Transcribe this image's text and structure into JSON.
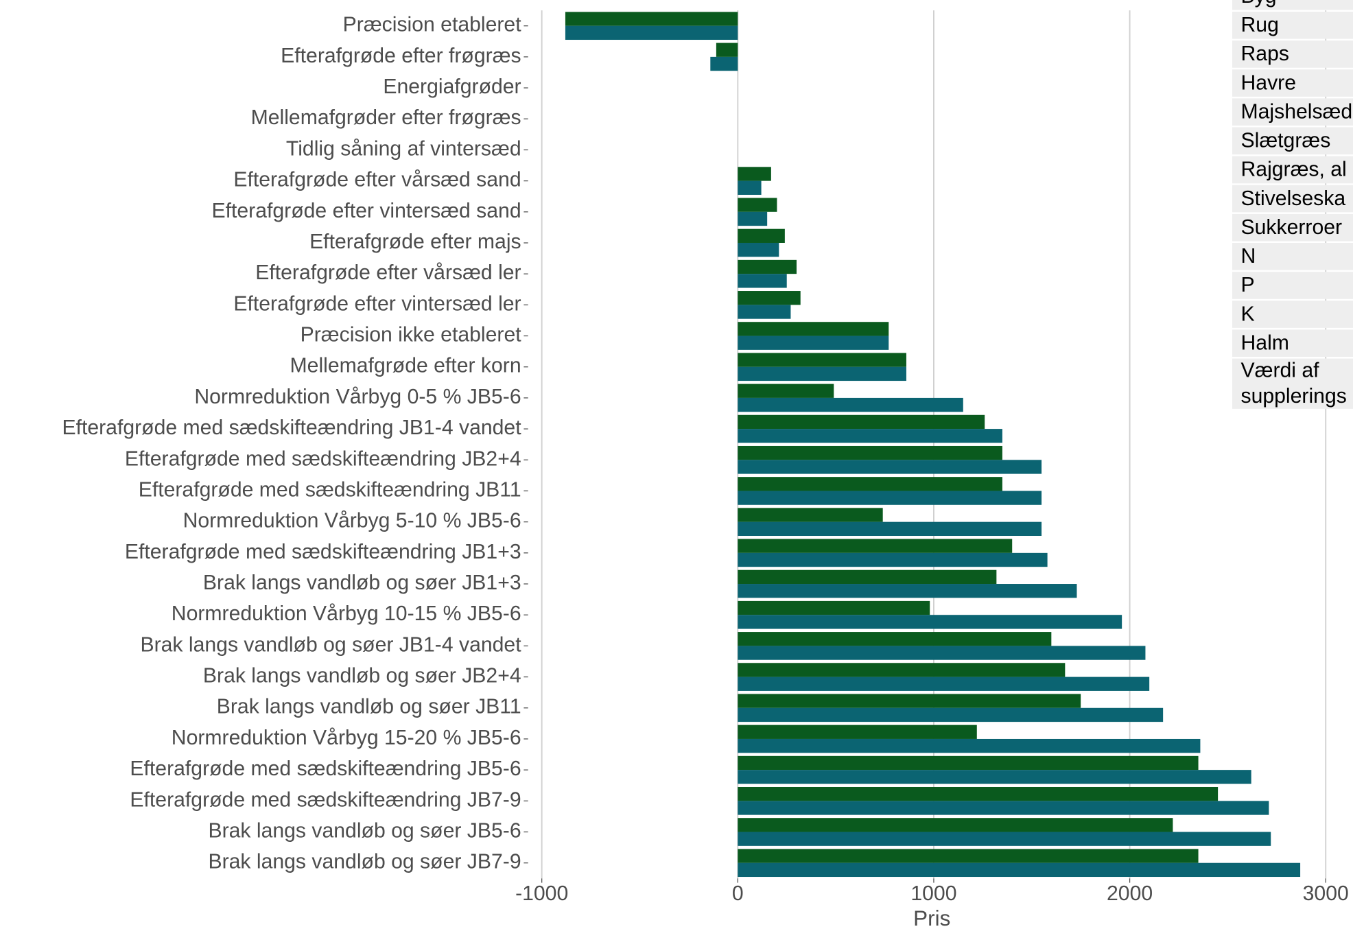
{
  "chart_data": {
    "type": "bar",
    "orientation": "horizontal",
    "x_label": "Pris",
    "categories": [
      "Præcision etableret",
      "Efterafgrøde efter frøgræs",
      "Energiafgrøder",
      "Mellemafgrøder efter frøgræs",
      "Tidlig såning af vintersæd",
      "Efterafgrøde efter vårsæd sand",
      "Efterafgrøde efter vintersæd sand",
      "Efterafgrøde efter majs",
      "Efterafgrøde efter vårsæd ler",
      "Efterafgrøde efter vintersæd ler",
      "Præcision ikke etableret",
      "Mellemafgrøde efter korn",
      "Normreduktion Vårbyg 0-5 % JB5-6",
      "Efterafgrøde med sædskifteændring JB1-4 vandet",
      "Efterafgrøde med sædskifteændring JB2+4",
      "Efterafgrøde med sædskifteændring JB11",
      "Normreduktion Vårbyg 5-10 % JB5-6",
      "Efterafgrøde med sædskifteændring JB1+3",
      "Brak langs vandløb og søer JB1+3",
      "Normreduktion Vårbyg 10-15 % JB5-6",
      "Brak langs vandløb og søer JB1-4 vandet",
      "Brak langs vandløb og søer JB2+4",
      "Brak langs vandløb og søer JB11",
      "Normreduktion Vårbyg 15-20 % JB5-6",
      "Efterafgrøde med sædskifteændring JB5-6",
      "Efterafgrøde med sædskifteændring JB7-9",
      "Brak langs vandløb og søer JB5-6",
      "Brak langs vandløb og søer JB7-9"
    ],
    "series": [
      {
        "color": "#0a5a1e",
        "values": [
          -880,
          -110,
          0,
          0,
          0,
          170,
          200,
          240,
          300,
          320,
          770,
          860,
          490,
          1260,
          1350,
          1350,
          740,
          1400,
          1320,
          980,
          1600,
          1670,
          1750,
          1220,
          2350,
          2450,
          2220,
          2350
        ]
      },
      {
        "color": "#0b6472",
        "values": [
          -880,
          -140,
          0,
          0,
          0,
          120,
          150,
          210,
          250,
          270,
          770,
          860,
          1150,
          1350,
          1550,
          1550,
          1550,
          1580,
          1730,
          1960,
          2080,
          2100,
          2170,
          2360,
          2620,
          2710,
          2720,
          2870
        ]
      }
    ],
    "xlim": [
      -1070,
      3060
    ],
    "xticks": [
      -1000,
      0,
      1000,
      2000,
      3000
    ],
    "grid": true
  },
  "table": {
    "rows": [
      [
        "Byg"
      ],
      [
        "Rug"
      ],
      [
        "Raps"
      ],
      [
        "Havre"
      ],
      [
        "Majshelsæd"
      ],
      [
        "Slætgræs"
      ],
      [
        "Rajgræs, al"
      ],
      [
        "Stivelseska"
      ],
      [
        "Sukkerroer"
      ],
      [
        "N"
      ],
      [
        "P"
      ],
      [
        "K"
      ],
      [
        "Halm"
      ],
      [
        "Værdi af",
        "supplerings"
      ]
    ]
  }
}
